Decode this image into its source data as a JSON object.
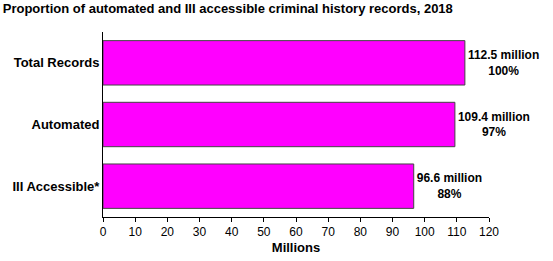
{
  "chart_data": {
    "type": "bar",
    "title": "Proportion of automated and III accessible criminal history records, 2018",
    "orientation": "horizontal",
    "categories": [
      "Total Records",
      "Automated",
      "III Accessible*"
    ],
    "values": [
      112.5,
      109.4,
      96.6
    ],
    "value_labels": [
      "112.5 million\n100%",
      "109.4 million\n97%",
      "96.6 million\n88%"
    ],
    "data_labels": true,
    "color": "#ff00ff",
    "x_label": "Millions",
    "xlim": [
      0,
      120
    ],
    "xticks": [
      0,
      10,
      20,
      30,
      40,
      50,
      60,
      70,
      80,
      90,
      100,
      110,
      120
    ],
    "grid": false
  }
}
